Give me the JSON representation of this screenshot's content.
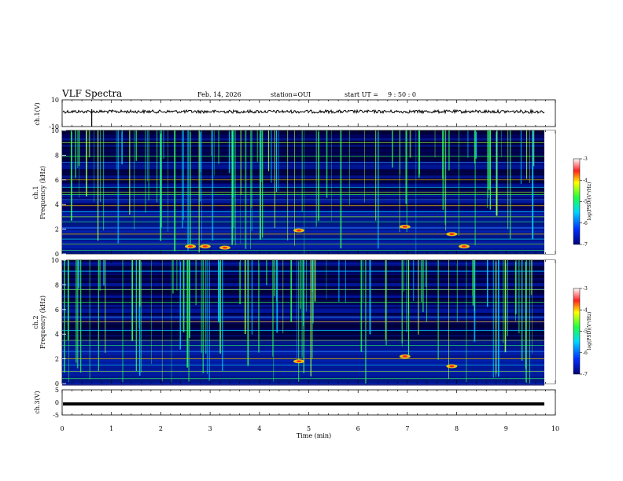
{
  "header": {
    "title": "VLF Spectra",
    "date": "Feb. 14, 2026",
    "station": "station=OUI",
    "start_label": "start  UT =",
    "start_time": "9 : 50 : 0"
  },
  "chart_data": [
    {
      "type": "line",
      "id": "ch1-waveform",
      "ylabel": "ch.1(V)",
      "ylim": [
        -10,
        10
      ],
      "yticks": [
        "10",
        "-10"
      ],
      "series": [
        {
          "name": "ch.1",
          "baseline": 0,
          "spike_at_min": 0.6
        }
      ]
    },
    {
      "type": "heatmap",
      "id": "ch1-spectrogram",
      "ylabel_top": "ch.1",
      "ylabel": "Frequency  (kHz)",
      "ylim": [
        0,
        10
      ],
      "yticks": [
        "0",
        "2",
        "4",
        "6",
        "8",
        "10"
      ],
      "colorbar": {
        "label": "log(PSD)(V²/Hz)",
        "range": [
          -7,
          -3
        ],
        "ticks": [
          "-3",
          "-4",
          "-5",
          "-6",
          "-7"
        ]
      },
      "hot_spots": [
        {
          "t": 2.6,
          "f": 0.6
        },
        {
          "t": 2.9,
          "f": 0.6
        },
        {
          "t": 3.3,
          "f": 0.5
        },
        {
          "t": 4.8,
          "f": 1.9
        },
        {
          "t": 6.95,
          "f": 2.2
        },
        {
          "t": 7.9,
          "f": 1.6
        },
        {
          "t": 8.15,
          "f": 0.6
        }
      ],
      "lines_khz": [
        0.3,
        0.8,
        1.2,
        1.6,
        2.1,
        2.6,
        3.0,
        3.4,
        3.9,
        4.4,
        4.8,
        5.0,
        5.4,
        6.0,
        7.4,
        7.9,
        9.0
      ]
    },
    {
      "type": "heatmap",
      "id": "ch2-spectrogram",
      "ylabel_top": "ch.2",
      "ylabel": "Frequency  (kHz)",
      "ylim": [
        0,
        10
      ],
      "yticks": [
        "0",
        "2",
        "4",
        "6",
        "8",
        "10"
      ],
      "colorbar": {
        "label": "log(PSD)(V²/Hz)",
        "range": [
          -7,
          -3
        ],
        "ticks": [
          "-3",
          "-4",
          "-5",
          "-6",
          "-7"
        ]
      },
      "hot_spots": [
        {
          "t": 4.8,
          "f": 1.8
        },
        {
          "t": 6.95,
          "f": 2.2
        },
        {
          "t": 7.9,
          "f": 1.4
        }
      ],
      "lines_khz": [
        0.4,
        1.0,
        1.5,
        2.0,
        2.6,
        3.1,
        3.5,
        4.3,
        5.0,
        5.4,
        6.6,
        7.6,
        9.1
      ]
    },
    {
      "type": "line",
      "id": "ch3-waveform",
      "ylabel": "ch.3(V)",
      "ylim": [
        -5,
        5
      ],
      "yticks": [
        "5",
        "0",
        "-5"
      ],
      "series": [
        {
          "name": "ch.3",
          "constant": -0.6
        }
      ]
    }
  ],
  "xaxis": {
    "label": "Time  (min)",
    "range": [
      0,
      10
    ],
    "ticks": [
      "0",
      "1",
      "2",
      "3",
      "4",
      "5",
      "6",
      "7",
      "8",
      "9",
      "10"
    ]
  }
}
